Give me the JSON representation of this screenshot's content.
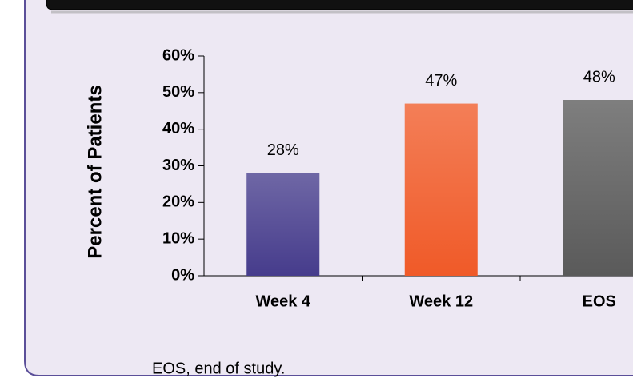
{
  "chart_data": {
    "type": "bar",
    "y_label": "Percent of Patients",
    "categories": [
      "Week 4",
      "Week 12",
      "EOS"
    ],
    "values": [
      28,
      47,
      48
    ],
    "value_labels": [
      "28%",
      "47%",
      "48%"
    ],
    "colors": [
      "#463c8c",
      "#f05a28",
      "#5a5a5a"
    ],
    "ylim": [
      0,
      60
    ],
    "yticks": [
      {
        "value": 0,
        "label": "0%"
      },
      {
        "value": 10,
        "label": "10%"
      },
      {
        "value": 20,
        "label": "20%"
      },
      {
        "value": 30,
        "label": "30%"
      },
      {
        "value": 40,
        "label": "40%"
      },
      {
        "value": 50,
        "label": "50%"
      },
      {
        "value": 60,
        "label": "60%"
      }
    ],
    "footnote": "EOS, end of study."
  }
}
